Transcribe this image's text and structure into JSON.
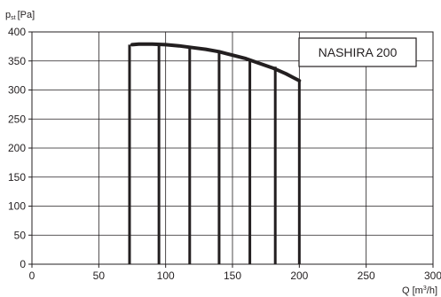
{
  "chart_data": {
    "type": "line",
    "ylabel_main": "p",
    "ylabel_sub": "st",
    "ylabel_unit": "[Pa]",
    "xlabel_main": "Q [m",
    "xlabel_sup": "3",
    "xlabel_unit": "/h]",
    "legend": "NASHIRA 200",
    "xlim": [
      0,
      300
    ],
    "ylim": [
      0,
      400
    ],
    "x_ticks": [
      "0",
      "50",
      "100",
      "150",
      "200",
      "250",
      "300"
    ],
    "y_ticks": [
      "0",
      "50",
      "100",
      "150",
      "200",
      "250",
      "300",
      "350",
      "400"
    ],
    "grid": true,
    "series": [
      {
        "x": [
          75,
          80,
          90,
          100,
          110,
          120,
          130,
          140,
          150,
          160,
          170,
          180,
          190,
          195,
          200
        ],
        "values": [
          378,
          379,
          379,
          378,
          376,
          373,
          370,
          366,
          360,
          354,
          346,
          338,
          328,
          322,
          316
        ]
      }
    ],
    "vertical_markers": [
      {
        "x": 73,
        "y": 378
      },
      {
        "x": 95,
        "y": 379
      },
      {
        "x": 118,
        "y": 374
      },
      {
        "x": 140,
        "y": 367
      },
      {
        "x": 163,
        "y": 353
      },
      {
        "x": 182,
        "y": 340
      },
      {
        "x": 200,
        "y": 316
      }
    ]
  }
}
